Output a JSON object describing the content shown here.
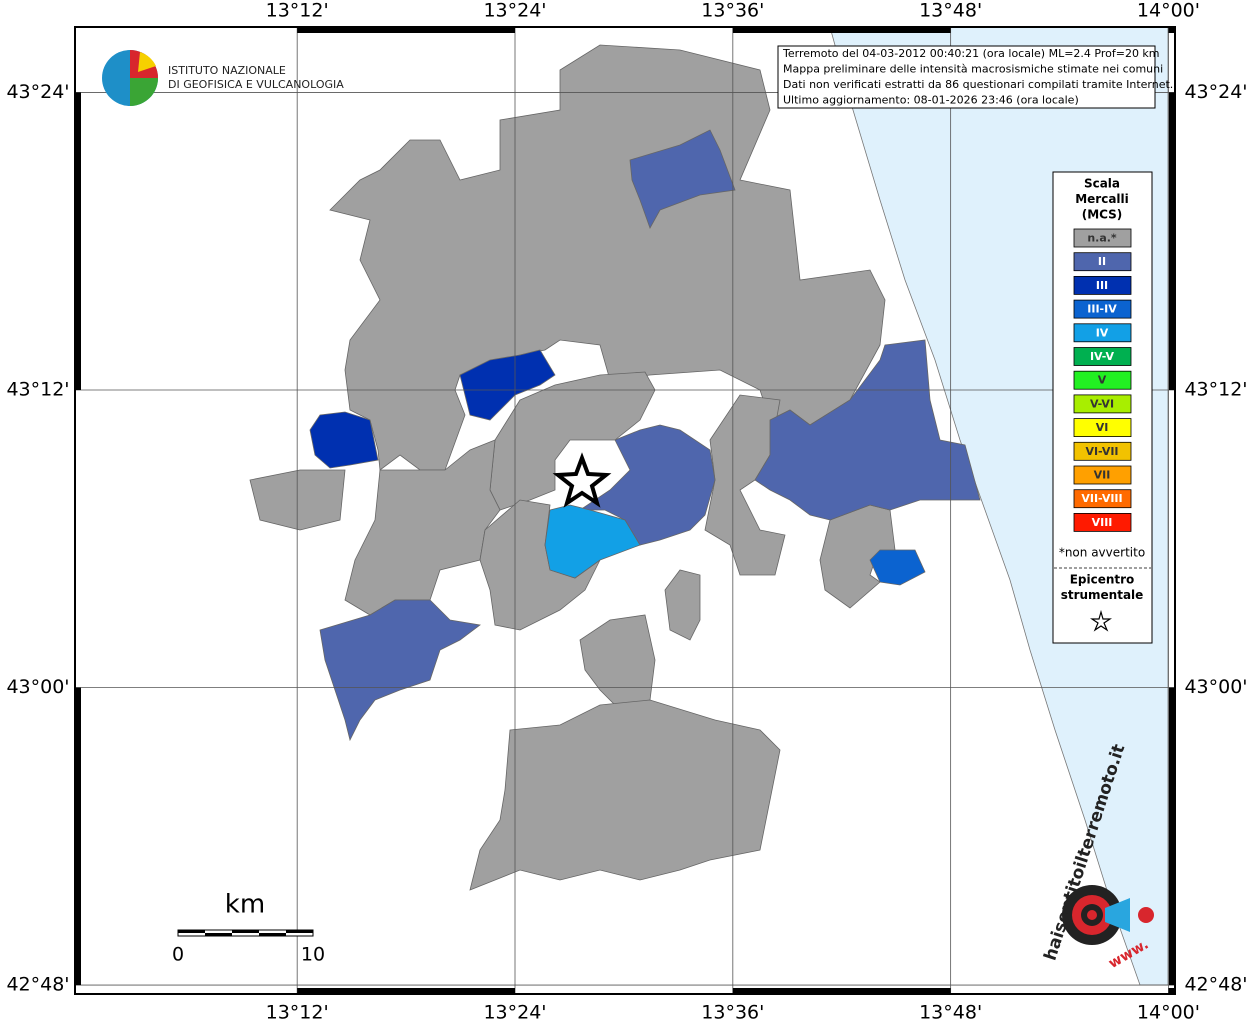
{
  "map": {
    "xlim": [
      12.996,
      14.006
    ],
    "ylim": [
      42.794,
      43.444
    ],
    "xticks": [
      {
        "value": 13.2,
        "label": "13°12'"
      },
      {
        "value": 13.4,
        "label": "13°24'"
      },
      {
        "value": 13.6,
        "label": "13°36'"
      },
      {
        "value": 13.8,
        "label": "13°48'"
      },
      {
        "value": 14.0,
        "label": "14°00'"
      }
    ],
    "yticks": [
      {
        "value": 43.4,
        "label": "43°24'"
      },
      {
        "value": 43.2,
        "label": "43°12'"
      },
      {
        "value": 43.0,
        "label": "43°00'"
      },
      {
        "value": 42.8,
        "label": "42°48'"
      }
    ],
    "grid": true,
    "institute": [
      "ISTITUTO NAZIONALE",
      "DI GEOFISICA E VULCANOLOGIA"
    ],
    "info": [
      "Terremoto del 04-03-2012 00:40:21 (ora locale) ML=2.4 Prof=20 km",
      "Mappa preliminare delle intensità macrosismiche stimate nei comuni",
      "Dati non verificati estratti da 86 questionari compilati tramite Internet.",
      "Ultimo aggiornamento: 08-01-2026 23:46 (ora locale)"
    ],
    "legend": {
      "title": [
        "Scala",
        "Mercalli",
        "(MCS)"
      ],
      "items": [
        {
          "name": "n.a.*",
          "color": "#a0a0a0"
        },
        {
          "name": "II",
          "color": "#4f66ad"
        },
        {
          "name": "III",
          "color": "#0030b0"
        },
        {
          "name": "III-IV",
          "color": "#0b63d0"
        },
        {
          "name": "IV",
          "color": "#12a0e6"
        },
        {
          "name": "IV-V",
          "color": "#00b050"
        },
        {
          "name": "V",
          "color": "#22f022"
        },
        {
          "name": "V-VI",
          "color": "#a8ee00"
        },
        {
          "name": "VI",
          "color": "#ffff00"
        },
        {
          "name": "VI-VII",
          "color": "#f2c200"
        },
        {
          "name": "VII",
          "color": "#ffa000"
        },
        {
          "name": "VII-VIII",
          "color": "#ff6a00"
        },
        {
          "name": "VIII",
          "color": "#ff1a00"
        }
      ],
      "note": "*non avvertito",
      "epicenter": [
        "Epicentro",
        "strumentale"
      ]
    },
    "scale": {
      "unit": "km",
      "start": "0",
      "end": "10"
    },
    "logo": {
      "site": "haisentitoilterremoto.it",
      "www": "www."
    }
  }
}
